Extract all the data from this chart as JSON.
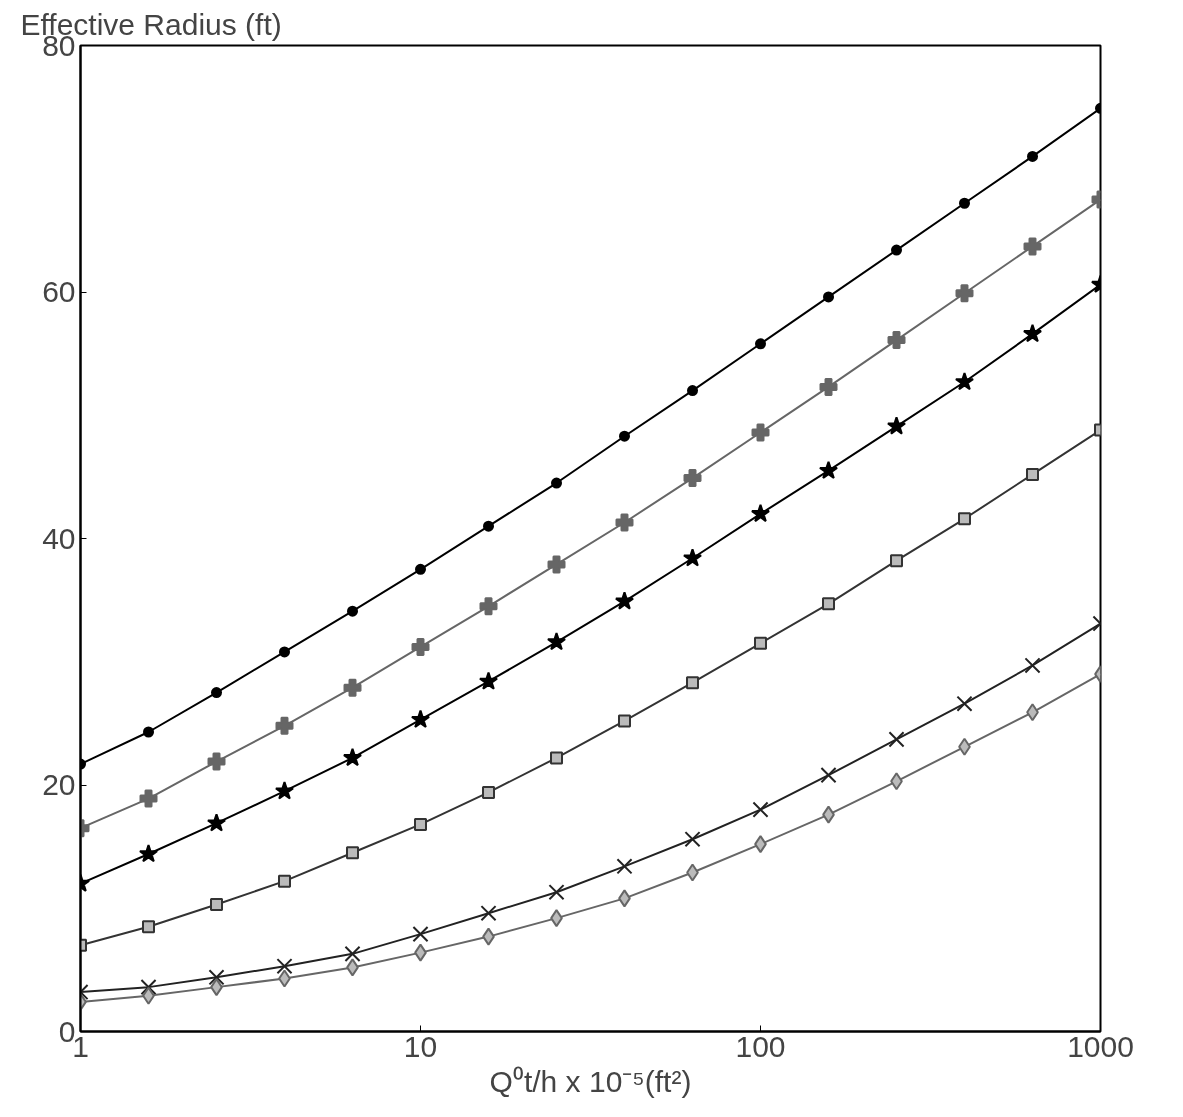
{
  "chart_data": {
    "type": "line",
    "ylabel": "Effective Radius (ft)",
    "xlabel": "Q⁰t/h x 10⁻⁵(ft²)",
    "log": "x",
    "xlim": [
      1,
      1000
    ],
    "xticks": [
      1,
      10,
      100,
      1000
    ],
    "ylim": [
      0,
      80
    ],
    "yticks": [
      0,
      20,
      40,
      60,
      80
    ],
    "grid": false,
    "x": [
      1,
      1.585,
      2.512,
      3.981,
      6.31,
      10,
      15.85,
      25.12,
      39.81,
      63.1,
      100,
      158.5,
      251.2,
      398.1,
      631,
      1000
    ],
    "series": [
      {
        "color": "#000000",
        "marker": "circle",
        "values": [
          21.7,
          24.3,
          27.5,
          30.8,
          34.1,
          37.5,
          41.0,
          44.5,
          48.3,
          52.0,
          55.8,
          59.6,
          63.4,
          67.2,
          71.0,
          74.9
        ]
      },
      {
        "color": "#666666",
        "marker": "cross",
        "values": [
          16.5,
          18.9,
          21.9,
          24.8,
          27.9,
          31.2,
          34.5,
          37.9,
          41.3,
          44.9,
          48.6,
          52.3,
          56.1,
          59.9,
          63.7,
          67.5
        ]
      },
      {
        "color": "#000000",
        "marker": "star",
        "values": [
          12.0,
          14.4,
          16.9,
          19.5,
          22.2,
          25.3,
          28.4,
          31.6,
          34.9,
          38.4,
          42.0,
          45.5,
          49.1,
          52.7,
          56.6,
          60.6
        ]
      },
      {
        "color": "#333333",
        "marker": "square",
        "values": [
          7.0,
          8.5,
          10.3,
          12.2,
          14.5,
          16.8,
          19.4,
          22.2,
          25.2,
          28.3,
          31.5,
          34.7,
          38.2,
          41.6,
          45.2,
          48.8
        ]
      },
      {
        "color": "#222222",
        "marker": "x",
        "values": [
          3.2,
          3.6,
          4.4,
          5.3,
          6.3,
          7.9,
          9.6,
          11.3,
          13.4,
          15.6,
          18.0,
          20.8,
          23.7,
          26.6,
          29.7,
          33.1
        ]
      },
      {
        "color": "#666666",
        "marker": "diamond",
        "values": [
          2.4,
          2.9,
          3.6,
          4.3,
          5.2,
          6.4,
          7.7,
          9.2,
          10.8,
          12.9,
          15.2,
          17.6,
          20.3,
          23.1,
          25.9,
          29.0
        ]
      }
    ]
  }
}
